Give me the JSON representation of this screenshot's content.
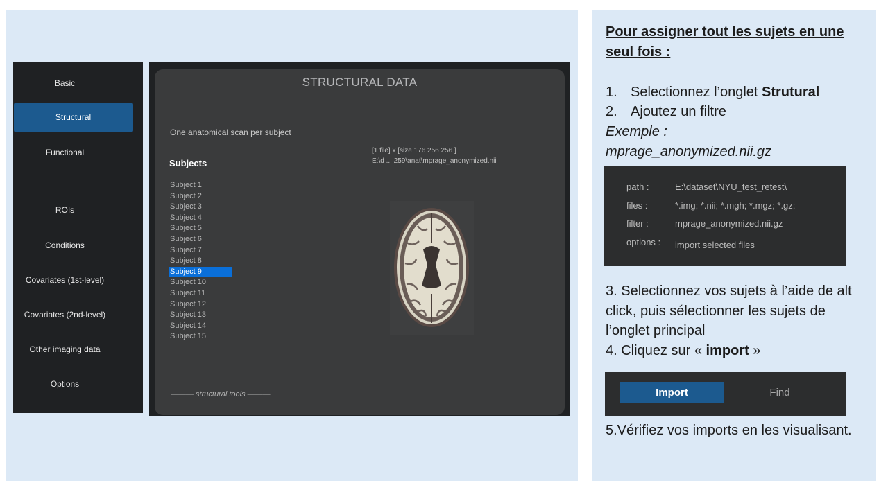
{
  "sidebar": {
    "items": [
      {
        "label": "Basic"
      },
      {
        "label": "Structural"
      },
      {
        "label": "Functional"
      },
      {
        "label": "ROIs"
      },
      {
        "label": "Conditions"
      },
      {
        "label": "Covariates (1st-level)"
      },
      {
        "label": "Covariates (2nd-level)"
      },
      {
        "label": "Other imaging data"
      },
      {
        "label": "Options"
      }
    ],
    "active_index": 1
  },
  "main": {
    "title": "STRUCTURAL DATA",
    "description": "One anatomical scan per subject",
    "subjects_heading": "Subjects",
    "subjects": [
      "Subject  1",
      "Subject  2",
      "Subject  3",
      "Subject  4",
      "Subject  5",
      "Subject  6",
      "Subject  7",
      "Subject  8",
      "Subject  9",
      "Subject 10",
      "Subject 11",
      "Subject 12",
      "Subject 13",
      "Subject 14",
      "Subject 15"
    ],
    "selected_subject_index": 8,
    "file_info_line1": "[1 file] x [size 176 256 256 ]",
    "file_info_line2": "E:\\d ... 259\\anat\\mprage_anonymized.nii",
    "tools_label": "——— structural tools ———"
  },
  "instructions": {
    "heading": "Pour assigner tout les sujets en une seul fois :",
    "step1_num": "1.",
    "step1_text": "Selectionnez l’onglet ",
    "step1_bold": "Strutural",
    "step2_num": "2.",
    "step2_text": "Ajoutez un filtre",
    "example_label": "Exemple :",
    "example_value": "mprage_anonymized.nii.gz",
    "step3": "3. Selectionnez vos sujets à l’aide de alt click, puis sélectionner les sujets de l’onglet principal",
    "step4_text": "4. Cliquez sur  « ",
    "step4_bold": "import",
    "step4_end": " »",
    "step5": "5.Vérifiez vos imports en les visualisant."
  },
  "config": {
    "path_label": "path :",
    "path_value": "E:\\dataset\\NYU_test_retest\\",
    "files_label": "files :",
    "files_value": "*.img; *.nii; *.mgh; *.mgz; *.gz;",
    "filter_label": "filter :",
    "filter_value": "mprage_anonymized.nii.gz",
    "options_label": "options :",
    "options_value": "import selected files"
  },
  "buttons": {
    "import_label": "Import",
    "find_label": "Find"
  }
}
